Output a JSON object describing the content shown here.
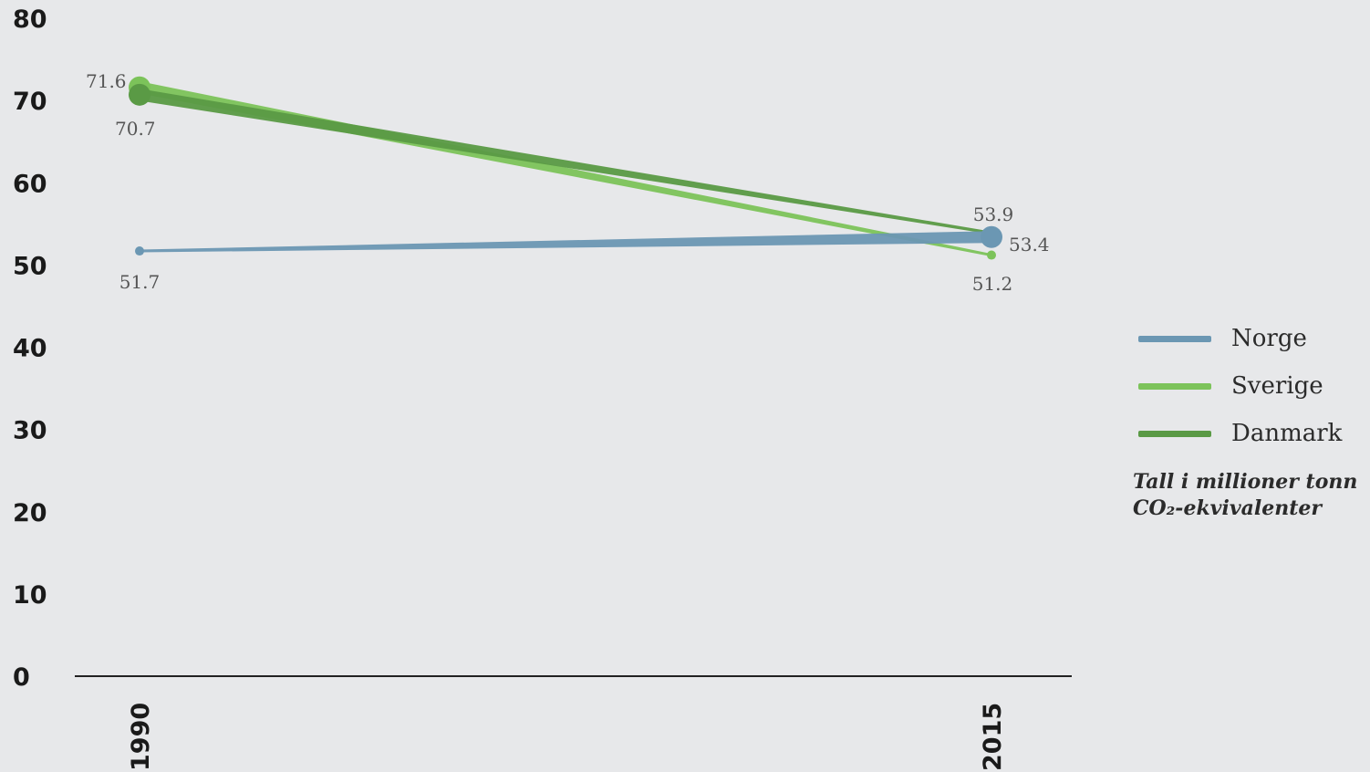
{
  "chart_data": {
    "type": "line",
    "x": [
      "1990",
      "2015"
    ],
    "series": [
      {
        "name": "Norge",
        "values": [
          51.7,
          53.4
        ],
        "color": "#6b97b3",
        "labels": [
          "51.7",
          "53.4"
        ]
      },
      {
        "name": "Sverige",
        "values": [
          71.6,
          51.2
        ],
        "color": "#7cc35a",
        "labels": [
          "71.6",
          "51.2"
        ]
      },
      {
        "name": "Danmark",
        "values": [
          70.7,
          53.9
        ],
        "color": "#5a9a45",
        "labels": [
          "70.7",
          "53.9"
        ]
      }
    ],
    "yticks": [
      "0",
      "10",
      "20",
      "30",
      "40",
      "50",
      "60",
      "70",
      "80"
    ],
    "ylim": [
      0,
      80
    ],
    "grid": false,
    "legend_position": "right",
    "note_line1": "Tall i millioner tonn",
    "note_line2": "CO₂-ekvivalenter"
  }
}
